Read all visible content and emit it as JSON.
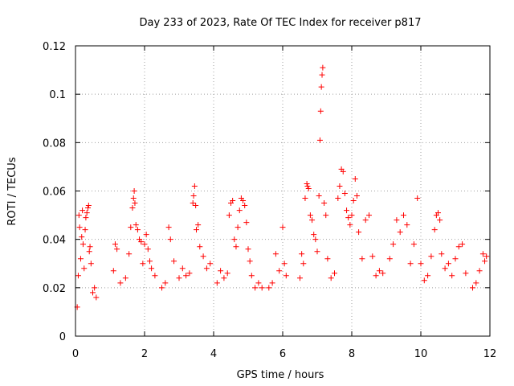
{
  "chart_data": {
    "type": "scatter",
    "title": "Day 233 of 2023, Rate Of TEC Index for receiver p817",
    "xlabel": "GPS time / hours",
    "ylabel": "ROTI / TECUs",
    "xlim": [
      0,
      12
    ],
    "ylim": [
      0,
      0.12
    ],
    "x_ticks": [
      0,
      2,
      4,
      6,
      8,
      10,
      12
    ],
    "x_tick_labels": [
      "0",
      "2",
      "4",
      "6",
      "8",
      "10",
      "12"
    ],
    "y_ticks": [
      0,
      0.02,
      0.04,
      0.06,
      0.08,
      0.1,
      0.12
    ],
    "y_tick_labels": [
      "0",
      "0.02",
      "0.04",
      "0.06",
      "0.08",
      "0.1",
      "0.12"
    ],
    "grid": true,
    "marker": "+",
    "color": "#ff0000",
    "series": [
      {
        "name": "ROTI",
        "points": [
          [
            0.05,
            0.012
          ],
          [
            0.08,
            0.025
          ],
          [
            0.1,
            0.05
          ],
          [
            0.12,
            0.045
          ],
          [
            0.15,
            0.032
          ],
          [
            0.18,
            0.041
          ],
          [
            0.2,
            0.052
          ],
          [
            0.22,
            0.038
          ],
          [
            0.25,
            0.028
          ],
          [
            0.28,
            0.044
          ],
          [
            0.3,
            0.049
          ],
          [
            0.33,
            0.051
          ],
          [
            0.36,
            0.053
          ],
          [
            0.38,
            0.054
          ],
          [
            0.4,
            0.035
          ],
          [
            0.42,
            0.037
          ],
          [
            0.45,
            0.03
          ],
          [
            0.5,
            0.018
          ],
          [
            0.55,
            0.02
          ],
          [
            0.6,
            0.016
          ],
          [
            1.1,
            0.027
          ],
          [
            1.15,
            0.038
          ],
          [
            1.2,
            0.036
          ],
          [
            1.3,
            0.022
          ],
          [
            1.45,
            0.024
          ],
          [
            1.55,
            0.034
          ],
          [
            1.6,
            0.045
          ],
          [
            1.65,
            0.053
          ],
          [
            1.68,
            0.057
          ],
          [
            1.7,
            0.06
          ],
          [
            1.72,
            0.055
          ],
          [
            1.75,
            0.046
          ],
          [
            1.8,
            0.044
          ],
          [
            1.85,
            0.04
          ],
          [
            1.9,
            0.039
          ],
          [
            1.95,
            0.03
          ],
          [
            2.0,
            0.038
          ],
          [
            2.05,
            0.042
          ],
          [
            2.1,
            0.036
          ],
          [
            2.15,
            0.031
          ],
          [
            2.2,
            0.028
          ],
          [
            2.3,
            0.025
          ],
          [
            2.5,
            0.02
          ],
          [
            2.6,
            0.022
          ],
          [
            2.7,
            0.045
          ],
          [
            2.75,
            0.04
          ],
          [
            2.85,
            0.031
          ],
          [
            3.0,
            0.024
          ],
          [
            3.1,
            0.028
          ],
          [
            3.2,
            0.025
          ],
          [
            3.3,
            0.026
          ],
          [
            3.4,
            0.055
          ],
          [
            3.42,
            0.058
          ],
          [
            3.45,
            0.062
          ],
          [
            3.48,
            0.054
          ],
          [
            3.5,
            0.044
          ],
          [
            3.55,
            0.046
          ],
          [
            3.6,
            0.037
          ],
          [
            3.7,
            0.033
          ],
          [
            3.8,
            0.028
          ],
          [
            3.9,
            0.03
          ],
          [
            4.1,
            0.022
          ],
          [
            4.2,
            0.027
          ],
          [
            4.3,
            0.024
          ],
          [
            4.4,
            0.026
          ],
          [
            4.45,
            0.05
          ],
          [
            4.5,
            0.055
          ],
          [
            4.55,
            0.056
          ],
          [
            4.6,
            0.04
          ],
          [
            4.65,
            0.037
          ],
          [
            4.7,
            0.045
          ],
          [
            4.75,
            0.052
          ],
          [
            4.8,
            0.057
          ],
          [
            4.85,
            0.056
          ],
          [
            4.9,
            0.054
          ],
          [
            4.95,
            0.047
          ],
          [
            5.0,
            0.036
          ],
          [
            5.05,
            0.031
          ],
          [
            5.1,
            0.025
          ],
          [
            5.2,
            0.02
          ],
          [
            5.3,
            0.022
          ],
          [
            5.4,
            0.02
          ],
          [
            5.6,
            0.02
          ],
          [
            5.7,
            0.022
          ],
          [
            5.8,
            0.034
          ],
          [
            5.9,
            0.027
          ],
          [
            6.0,
            0.045
          ],
          [
            6.05,
            0.03
          ],
          [
            6.1,
            0.025
          ],
          [
            6.5,
            0.024
          ],
          [
            6.55,
            0.034
          ],
          [
            6.6,
            0.03
          ],
          [
            6.65,
            0.057
          ],
          [
            6.7,
            0.063
          ],
          [
            6.72,
            0.062
          ],
          [
            6.75,
            0.061
          ],
          [
            6.8,
            0.05
          ],
          [
            6.85,
            0.048
          ],
          [
            6.9,
            0.042
          ],
          [
            6.95,
            0.04
          ],
          [
            7.0,
            0.035
          ],
          [
            7.05,
            0.058
          ],
          [
            7.08,
            0.081
          ],
          [
            7.1,
            0.093
          ],
          [
            7.12,
            0.103
          ],
          [
            7.14,
            0.108
          ],
          [
            7.16,
            0.111
          ],
          [
            7.2,
            0.055
          ],
          [
            7.25,
            0.05
          ],
          [
            7.3,
            0.032
          ],
          [
            7.4,
            0.024
          ],
          [
            7.5,
            0.026
          ],
          [
            7.6,
            0.057
          ],
          [
            7.65,
            0.062
          ],
          [
            7.7,
            0.069
          ],
          [
            7.75,
            0.068
          ],
          [
            7.8,
            0.059
          ],
          [
            7.85,
            0.052
          ],
          [
            7.9,
            0.049
          ],
          [
            7.95,
            0.046
          ],
          [
            8.0,
            0.05
          ],
          [
            8.05,
            0.056
          ],
          [
            8.1,
            0.065
          ],
          [
            8.15,
            0.058
          ],
          [
            8.2,
            0.043
          ],
          [
            8.3,
            0.032
          ],
          [
            8.4,
            0.048
          ],
          [
            8.5,
            0.05
          ],
          [
            8.6,
            0.033
          ],
          [
            8.7,
            0.025
          ],
          [
            8.8,
            0.027
          ],
          [
            8.9,
            0.026
          ],
          [
            9.1,
            0.032
          ],
          [
            9.2,
            0.038
          ],
          [
            9.3,
            0.048
          ],
          [
            9.4,
            0.043
          ],
          [
            9.5,
            0.05
          ],
          [
            9.6,
            0.046
          ],
          [
            9.7,
            0.03
          ],
          [
            9.8,
            0.038
          ],
          [
            9.9,
            0.057
          ],
          [
            10.0,
            0.03
          ],
          [
            10.1,
            0.023
          ],
          [
            10.2,
            0.025
          ],
          [
            10.3,
            0.033
          ],
          [
            10.4,
            0.044
          ],
          [
            10.45,
            0.05
          ],
          [
            10.5,
            0.051
          ],
          [
            10.55,
            0.048
          ],
          [
            10.6,
            0.034
          ],
          [
            10.7,
            0.028
          ],
          [
            10.8,
            0.03
          ],
          [
            10.9,
            0.025
          ],
          [
            11.0,
            0.032
          ],
          [
            11.1,
            0.037
          ],
          [
            11.2,
            0.038
          ],
          [
            11.3,
            0.026
          ],
          [
            11.5,
            0.02
          ],
          [
            11.6,
            0.022
          ],
          [
            11.7,
            0.027
          ],
          [
            11.8,
            0.034
          ],
          [
            11.85,
            0.031
          ],
          [
            11.9,
            0.033
          ]
        ]
      }
    ]
  }
}
